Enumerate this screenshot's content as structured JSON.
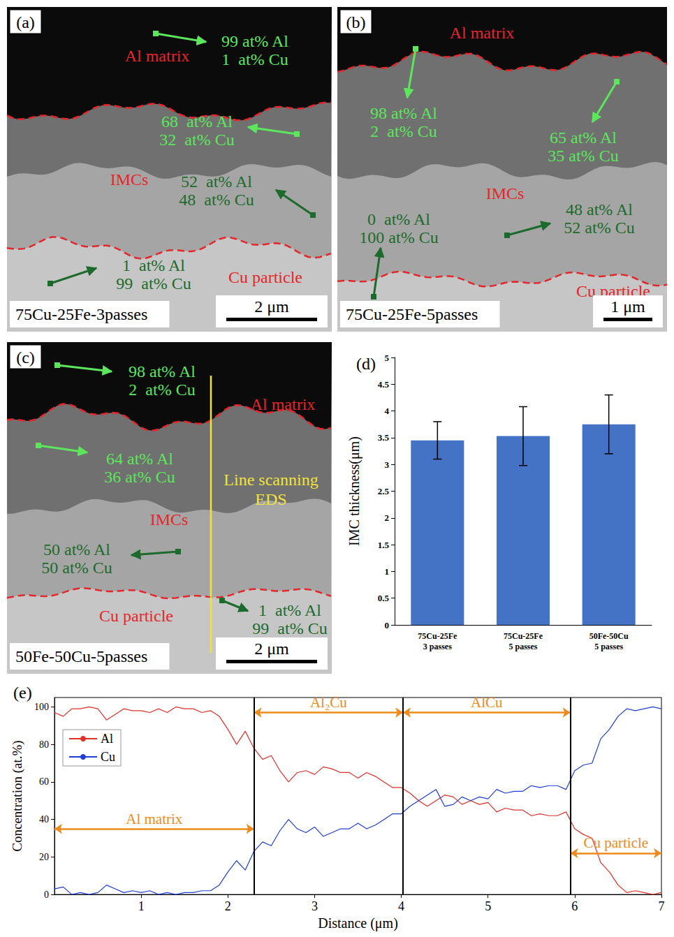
{
  "micrographs": [
    {
      "letter": "(a)",
      "sample": "75Cu-25Fe-3passes",
      "scale_bar": "2 μm",
      "regions": [
        "Al matrix",
        "IMCs",
        "Cu particle"
      ],
      "points": [
        [
          "99 at% Al",
          "1  at% Cu"
        ],
        [
          "68  at% Al",
          "32  at% Cu"
        ],
        [
          "52  at% Al",
          "48  at% Cu"
        ],
        [
          "1  at% Al",
          "99  at% Cu"
        ]
      ]
    },
    {
      "letter": "(b)",
      "sample": "75Cu-25Fe-5passes",
      "scale_bar": "1 μm",
      "regions": [
        "Al matrix",
        "IMCs",
        "Cu particle"
      ],
      "points": [
        [
          "98 at% Al",
          "2  at% Cu"
        ],
        [
          "65 at% Al",
          "35 at% Cu"
        ],
        [
          "0  at% Al",
          "100 at% Cu"
        ],
        [
          "48 at% Al",
          "52 at% Cu"
        ]
      ]
    },
    {
      "letter": "(c)",
      "sample": "50Fe-50Cu-5passes",
      "scale_bar": "2 μm",
      "regions": [
        "Al matrix",
        "IMCs",
        "Cu particle"
      ],
      "points": [
        [
          "98 at% Al",
          "2  at% Cu"
        ],
        [
          "64 at% Al",
          "36 at% Cu"
        ],
        [
          "50 at% Al",
          "50 at% Cu"
        ],
        [
          "1  at% Al",
          "99  at% Cu"
        ]
      ],
      "line_scan": "Line scanning EDS"
    }
  ],
  "chart_data": [
    {
      "panel": "(d)",
      "type": "bar",
      "categories": [
        "75Cu-25Fe 3 passes",
        "75Cu-25Fe 5 passes",
        "50Fe-50Cu 5 passes"
      ],
      "values": [
        3.45,
        3.53,
        3.75
      ],
      "errors": [
        0.35,
        0.55,
        0.55
      ],
      "color": "#4472c4",
      "y_label": "IMC thickness(μm)",
      "ylim": [
        0,
        5
      ],
      "yticks": [
        0,
        0.5,
        1,
        1.5,
        2,
        2.5,
        3,
        3.5,
        4,
        4.5,
        5
      ],
      "grid": false
    },
    {
      "panel": "(e)",
      "type": "line",
      "x": [
        0,
        0.1,
        0.2,
        0.3,
        0.4,
        0.5,
        0.6,
        0.7,
        0.8,
        0.9,
        1,
        1.1,
        1.2,
        1.3,
        1.4,
        1.5,
        1.6,
        1.7,
        1.8,
        1.9,
        2,
        2.1,
        2.2,
        2.3,
        2.4,
        2.5,
        2.6,
        2.7,
        2.8,
        2.9,
        3,
        3.1,
        3.2,
        3.3,
        3.4,
        3.5,
        3.6,
        3.7,
        3.8,
        3.9,
        4,
        4.1,
        4.2,
        4.3,
        4.4,
        4.5,
        4.6,
        4.7,
        4.8,
        4.9,
        5,
        5.1,
        5.2,
        5.3,
        5.4,
        5.5,
        5.6,
        5.7,
        5.8,
        5.9,
        6,
        6.1,
        6.2,
        6.3,
        6.4,
        6.5,
        6.6,
        6.7,
        6.8,
        6.9,
        7
      ],
      "series": [
        {
          "name": "Al",
          "color": "#e0302a",
          "values": [
            97,
            95,
            99,
            99,
            100,
            99,
            93,
            96,
            99,
            98,
            98,
            97,
            99,
            97,
            100,
            99,
            99,
            97,
            98,
            95,
            88,
            80,
            87,
            78,
            72,
            74,
            66,
            60,
            65,
            66,
            64,
            68,
            67,
            65,
            65,
            62,
            65,
            63,
            60,
            57,
            57,
            54,
            50,
            47,
            50,
            53,
            52,
            48,
            50,
            48,
            49,
            44,
            46,
            45,
            45,
            42,
            43,
            42,
            42,
            44,
            35,
            32,
            30,
            17,
            12,
            5,
            1,
            2,
            1,
            0,
            1
          ]
        },
        {
          "name": "Cu",
          "color": "#1f3fd6",
          "values": [
            3,
            4,
            0,
            1,
            0,
            1,
            5,
            3,
            1,
            2,
            1,
            2,
            0,
            1,
            0,
            1,
            1,
            2,
            2,
            5,
            12,
            18,
            13,
            23,
            28,
            26,
            34,
            40,
            35,
            33,
            36,
            31,
            33,
            35,
            35,
            38,
            35,
            37,
            40,
            43,
            43,
            47,
            50,
            53,
            56,
            47,
            48,
            52,
            50,
            52,
            51,
            56,
            54,
            55,
            55,
            58,
            57,
            58,
            58,
            56,
            66,
            69,
            70,
            83,
            88,
            95,
            99,
            98,
            99,
            100,
            99
          ]
        }
      ],
      "x_label": "Distance (μm)",
      "y_label": "Concentration (at.%)",
      "xlim": [
        0,
        7
      ],
      "xticks": [
        1,
        2,
        3,
        4,
        5,
        6,
        7
      ],
      "ylim": [
        0,
        105
      ],
      "yticks": [
        0,
        20,
        40,
        60,
        80,
        100
      ],
      "boundaries": [
        2.3,
        4.02,
        5.95
      ],
      "annotations": [
        {
          "text": "Al matrix",
          "x0": 0,
          "x1": 2.3,
          "y": 35
        },
        {
          "text": "Al₂Cu",
          "x0": 2.3,
          "x1": 4.02,
          "y": 97
        },
        {
          "text": "AlCu",
          "x0": 4.02,
          "x1": 5.95,
          "y": 97
        },
        {
          "text": "Cu particle",
          "x0": 5.95,
          "x1": 7,
          "y": 22
        }
      ],
      "legend": "upper left",
      "grid": false
    }
  ]
}
